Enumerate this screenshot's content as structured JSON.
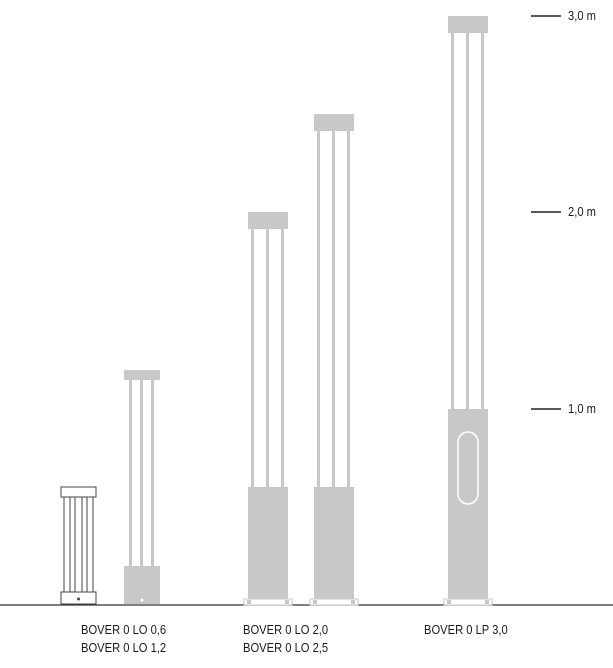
{
  "scale": {
    "unit": "m",
    "marks": [
      {
        "value": 3.0,
        "label": "3,0 m"
      },
      {
        "value": 2.0,
        "label": "2,0 m"
      },
      {
        "value": 1.0,
        "label": "1,0 m"
      }
    ]
  },
  "products": [
    {
      "name": "BOVER 0 LO 0,6",
      "height_m": 0.6
    },
    {
      "name": "BOVER 0 LO 1,2",
      "height_m": 1.2
    },
    {
      "name": "BOVER 0 LO 2,0",
      "height_m": 2.0
    },
    {
      "name": "BOVER 0 LO 2,5",
      "height_m": 2.5
    },
    {
      "name": "BOVER 0 LP 3,0",
      "height_m": 3.0
    }
  ],
  "captions": {
    "group1": [
      "BOVER 0 LO 0,6",
      "BOVER 0 LO 1,2"
    ],
    "group2": [
      "BOVER 0 LO 2,0",
      "BOVER 0 LO 2,5"
    ],
    "group3": [
      "BOVER 0 LP 3,0"
    ]
  },
  "colors": {
    "ground": "#333333",
    "pole_fill": "#c8c8c8",
    "pole_stroke": "#c8c8c8",
    "outline": "#555555",
    "text": "#1a1a1a"
  }
}
